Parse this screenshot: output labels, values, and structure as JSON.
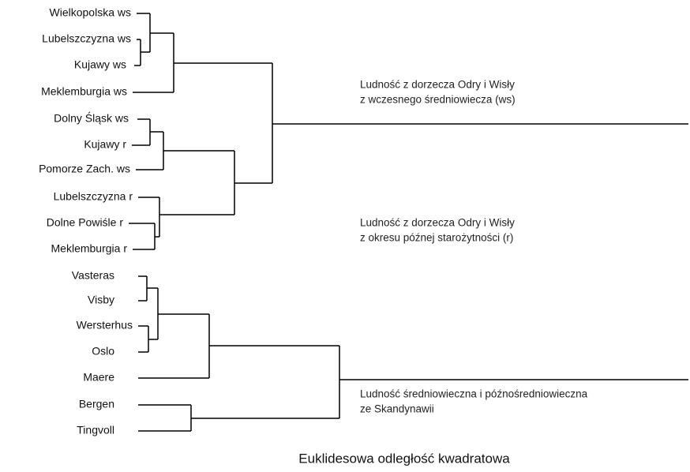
{
  "leaves": [
    "Wielkopolska ws",
    "Lubelszczyzna ws",
    "Kujawy ws",
    "Meklemburgia ws",
    "Dolny Śląsk ws",
    "Kujawy r",
    "Pomorze Zach. ws",
    "Lubelszczyzna r",
    "Dolne Powiśle r",
    "Meklemburgia r",
    "Vasteras",
    "Visby",
    "Wersterhus",
    "Oslo",
    "Maere",
    "Bergen",
    "Tingvoll"
  ],
  "groups": [
    {
      "lines": [
        "Ludność z dorzecza Odry i Wisły",
        "z wczesnego średniowiecza (ws)"
      ]
    },
    {
      "lines": [
        "Ludność z dorzecza Odry i Wisły",
        "z okresu późnej starożytności (r)"
      ]
    },
    {
      "lines": [
        "Ludność średniowieczna i późnośredniowieczna",
        "ze Skandynawii"
      ]
    }
  ],
  "axis_label": "Euklidesowa odległość kwadratowa"
}
